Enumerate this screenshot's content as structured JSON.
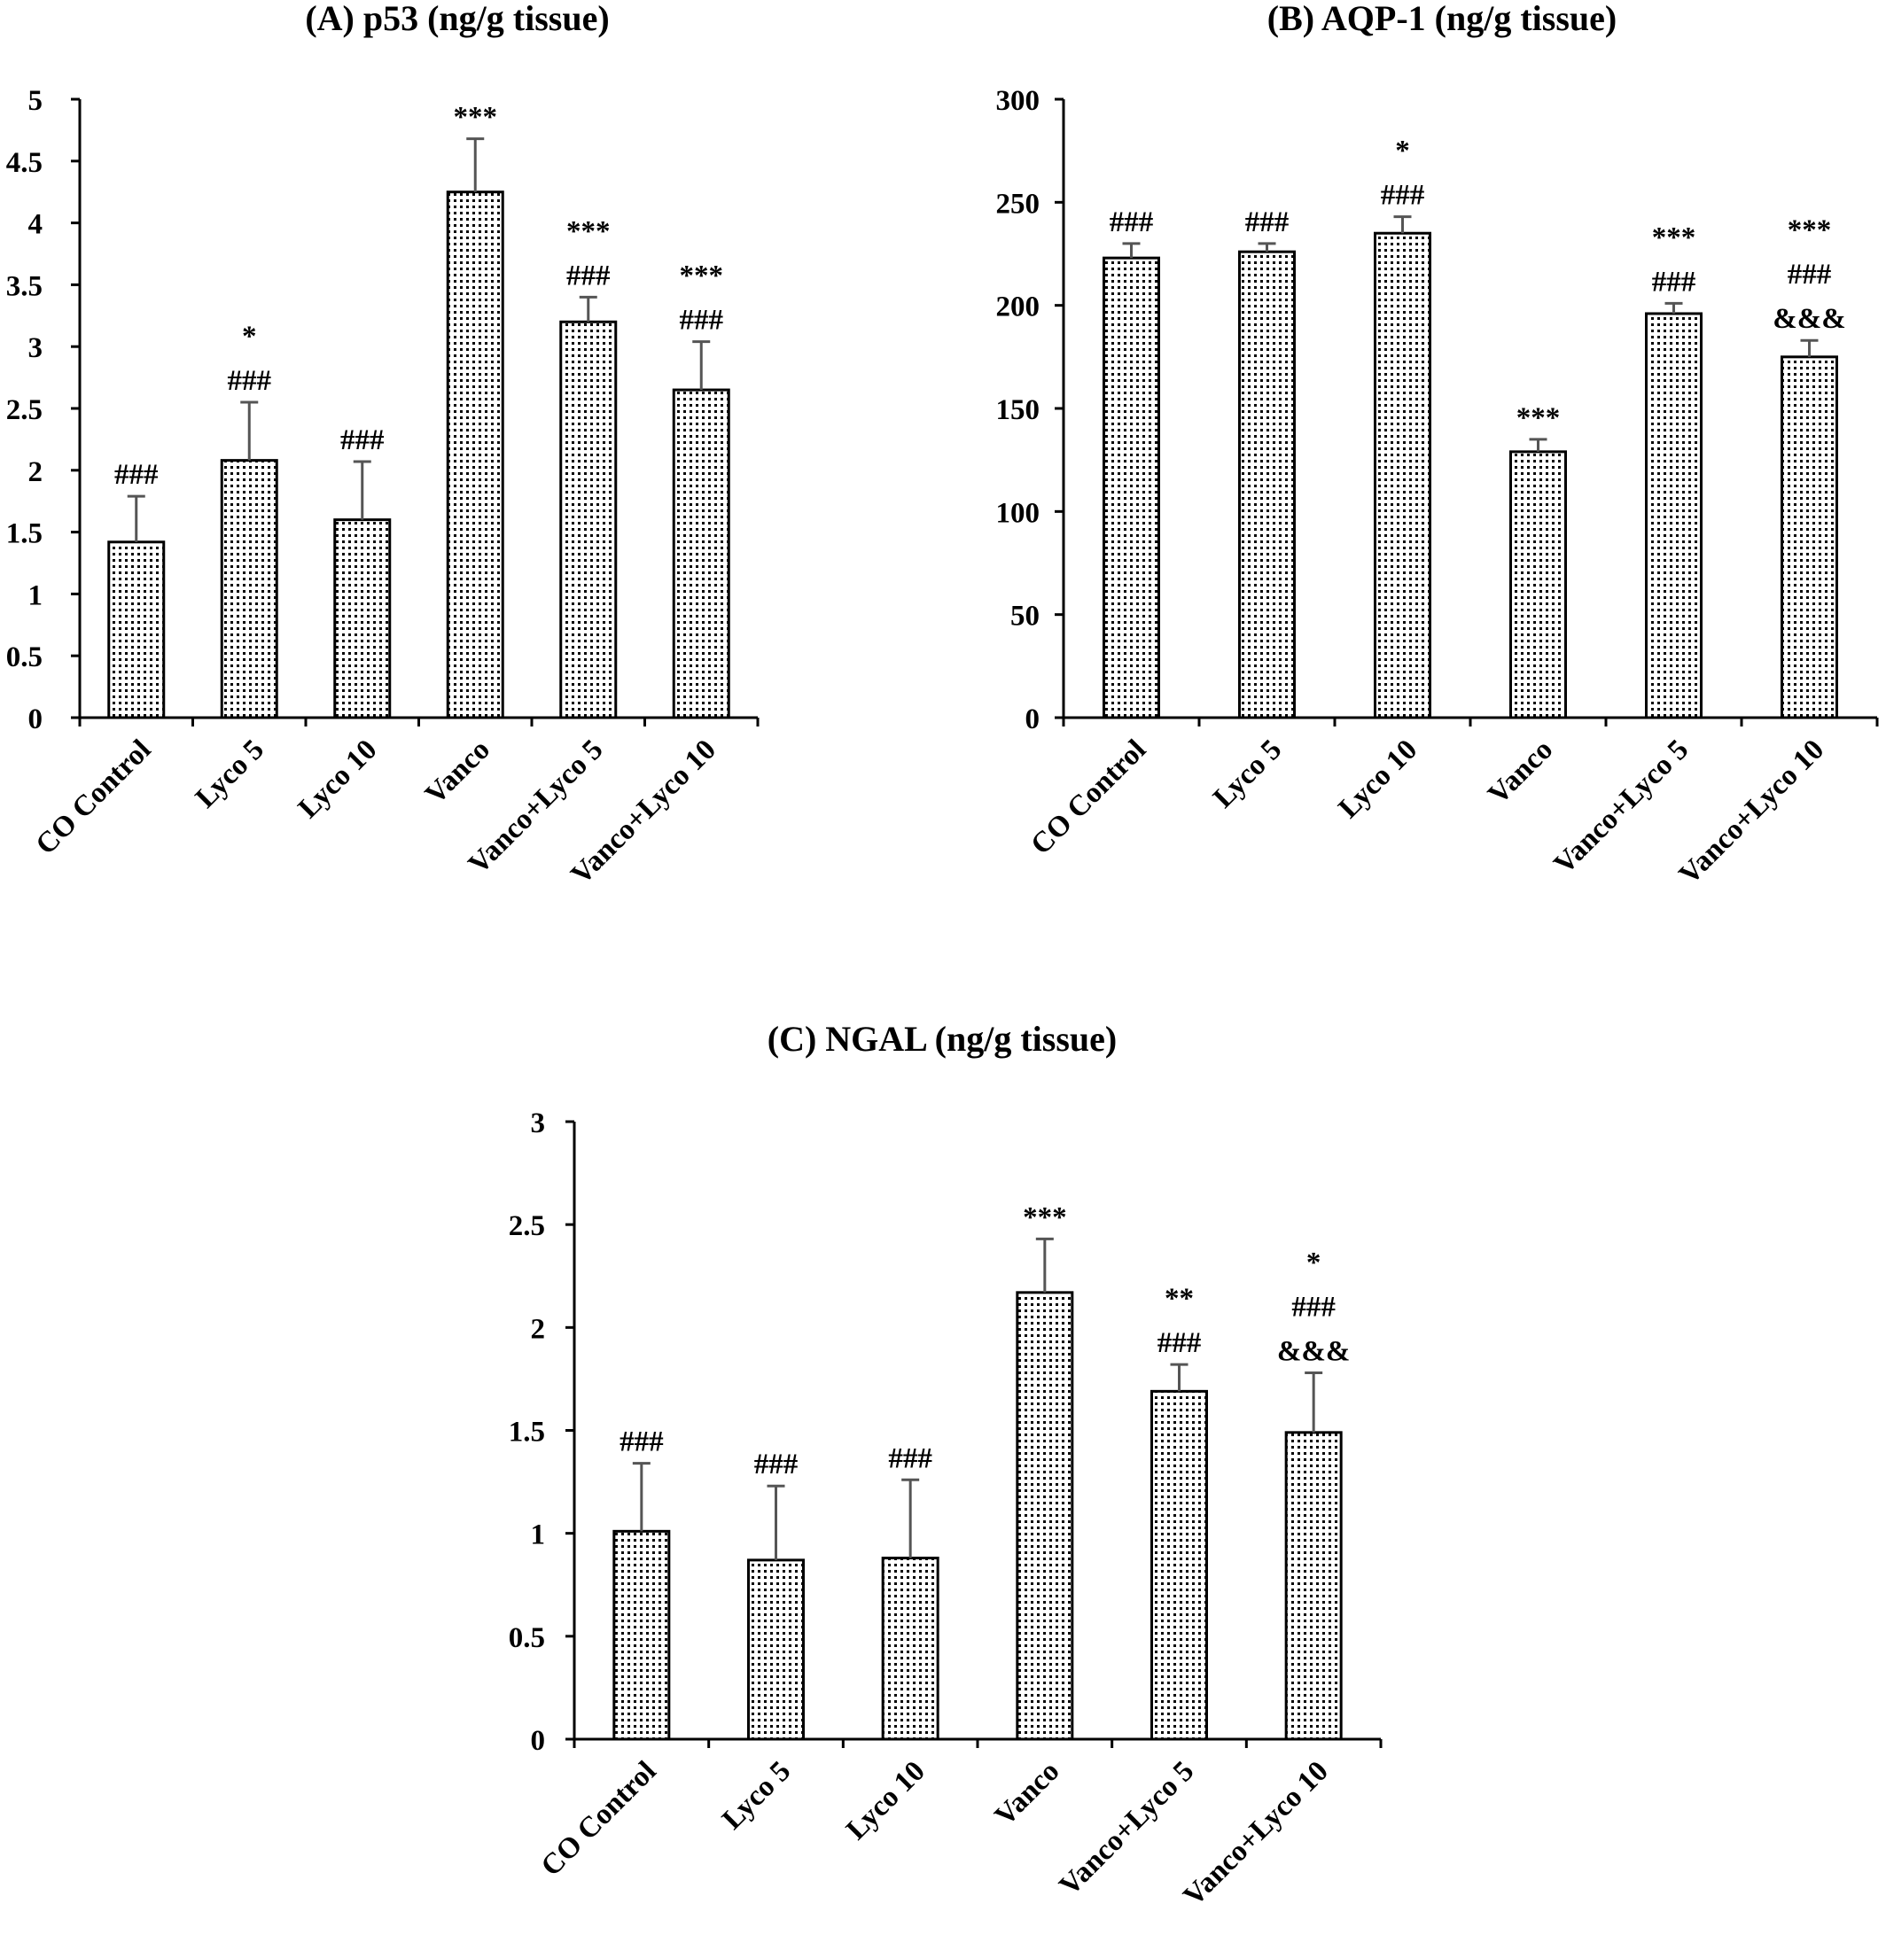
{
  "chart_data": [
    {
      "type": "bar",
      "title": "(A) p53 (ng/g tissue)",
      "categories": [
        "CO Control",
        "Lyco 5",
        "Lyco 10",
        "Vanco",
        "Vanco+Lyco 5",
        "Vanco+Lyco 10"
      ],
      "values": [
        1.42,
        2.08,
        1.6,
        4.25,
        3.2,
        2.65
      ],
      "errors": [
        0.37,
        0.47,
        0.47,
        0.43,
        0.2,
        0.39
      ],
      "annotations": [
        [
          "###"
        ],
        [
          "*",
          "###"
        ],
        [
          "###"
        ],
        [
          "***"
        ],
        [
          "***",
          "###"
        ],
        [
          "***",
          "###"
        ]
      ],
      "yticks": [
        "0",
        "0.5",
        "1",
        "1.5",
        "2",
        "2.5",
        "3",
        "3.5",
        "4",
        "4.5",
        "5"
      ],
      "ylim": [
        0,
        5
      ],
      "xlabel": "",
      "ylabel": "",
      "grid": false,
      "legend": "none"
    },
    {
      "type": "bar",
      "title": "(B) AQP-1 (ng/g tissue)",
      "categories": [
        "CO Control",
        "Lyco 5",
        "Lyco 10",
        "Vanco",
        "Vanco+Lyco 5",
        "Vanco+Lyco 10"
      ],
      "values": [
        223,
        226,
        235,
        129,
        196,
        175
      ],
      "errors": [
        7,
        4,
        8,
        6,
        5,
        8
      ],
      "annotations": [
        [
          "###"
        ],
        [
          "###"
        ],
        [
          "*",
          "###"
        ],
        [
          "***"
        ],
        [
          "***",
          "###"
        ],
        [
          "***",
          "###",
          "&&&"
        ]
      ],
      "yticks": [
        "0",
        "50",
        "100",
        "150",
        "200",
        "250",
        "300"
      ],
      "ylim": [
        0,
        300
      ],
      "xlabel": "",
      "ylabel": "",
      "grid": false,
      "legend": "none"
    },
    {
      "type": "bar",
      "title": "(C) NGAL (ng/g tissue)",
      "categories": [
        "CO Control",
        "Lyco 5",
        "Lyco 10",
        "Vanco",
        "Vanco+Lyco 5",
        "Vanco+Lyco 10"
      ],
      "values": [
        1.01,
        0.87,
        0.88,
        2.17,
        1.69,
        1.49
      ],
      "errors": [
        0.33,
        0.36,
        0.38,
        0.26,
        0.13,
        0.29
      ],
      "annotations": [
        [
          "###"
        ],
        [
          "###"
        ],
        [
          "###"
        ],
        [
          "***"
        ],
        [
          "**",
          "###"
        ],
        [
          "*",
          "###",
          "&&&"
        ]
      ],
      "yticks": [
        "0",
        "0.5",
        "1",
        "1.5",
        "2",
        "2.5",
        "3"
      ],
      "ylim": [
        0,
        3
      ],
      "xlabel": "",
      "ylabel": "",
      "grid": false,
      "legend": "none"
    }
  ]
}
